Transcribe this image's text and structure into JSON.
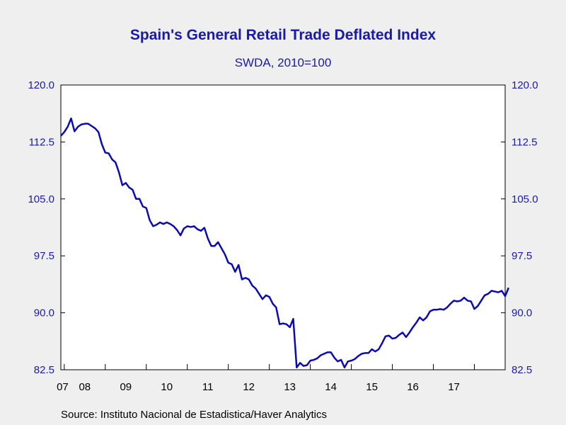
{
  "colors": {
    "line": "#0b0bb0",
    "text": "#1a1aa8",
    "background": "#efefef",
    "plot_background": "#ffffff"
  },
  "chart_data": {
    "type": "line",
    "title": "Spain's General Retail Trade Deflated Index",
    "subtitle": "SWDA, 2010=100",
    "source": "Source:  Instituto Nacional de Estadistica/Haver Analytics",
    "xlabel": "",
    "ylabel": "",
    "x_start": "2006-12",
    "x_end": "2017-10",
    "x_tick_labels": [
      "07",
      "08",
      "09",
      "10",
      "11",
      "12",
      "13",
      "14",
      "15",
      "16",
      "17"
    ],
    "ylim": [
      82.5,
      120.0
    ],
    "y_ticks": [
      "82.5",
      "90.0",
      "97.5",
      "105.0",
      "112.5",
      "120.0"
    ],
    "grid": false,
    "legend": "none",
    "series": [
      {
        "values": [
          113.3,
          113.8,
          114.5,
          115.6,
          113.9,
          114.5,
          114.8,
          114.9,
          114.9,
          114.6,
          114.3,
          113.8,
          112.2,
          111.1,
          111.0,
          110.2,
          109.8,
          108.5,
          106.8,
          107.1,
          106.5,
          106.2,
          105.0,
          105.0,
          104.0,
          103.8,
          102.2,
          101.4,
          101.6,
          101.9,
          101.7,
          101.9,
          101.7,
          101.4,
          100.9,
          100.2,
          101.1,
          101.4,
          101.3,
          101.4,
          101.0,
          100.8,
          101.2,
          99.8,
          98.8,
          98.8,
          99.3,
          98.5,
          97.7,
          96.6,
          96.4,
          95.4,
          96.3,
          94.4,
          94.6,
          94.4,
          93.6,
          93.2,
          92.5,
          91.8,
          92.3,
          92.1,
          91.2,
          90.7,
          88.5,
          88.6,
          88.5,
          88.1,
          89.2,
          82.8,
          83.4,
          83.0,
          83.1,
          83.7,
          83.8,
          84.0,
          84.4,
          84.6,
          84.8,
          84.8,
          84.1,
          83.6,
          83.8,
          82.8,
          83.6,
          83.7,
          83.9,
          84.3,
          84.6,
          84.7,
          84.7,
          85.2,
          84.9,
          85.2,
          86.0,
          86.9,
          87.0,
          86.6,
          86.7,
          87.1,
          87.4,
          86.8,
          87.4,
          88.1,
          88.7,
          89.4,
          89.0,
          89.4,
          90.2,
          90.4,
          90.4,
          90.5,
          90.4,
          90.7,
          91.2,
          91.6,
          91.5,
          91.6,
          92.0,
          91.6,
          91.5,
          90.5,
          90.9,
          91.6,
          92.3,
          92.5,
          92.9,
          92.8,
          92.7,
          92.9,
          92.2,
          93.3
        ]
      }
    ]
  }
}
